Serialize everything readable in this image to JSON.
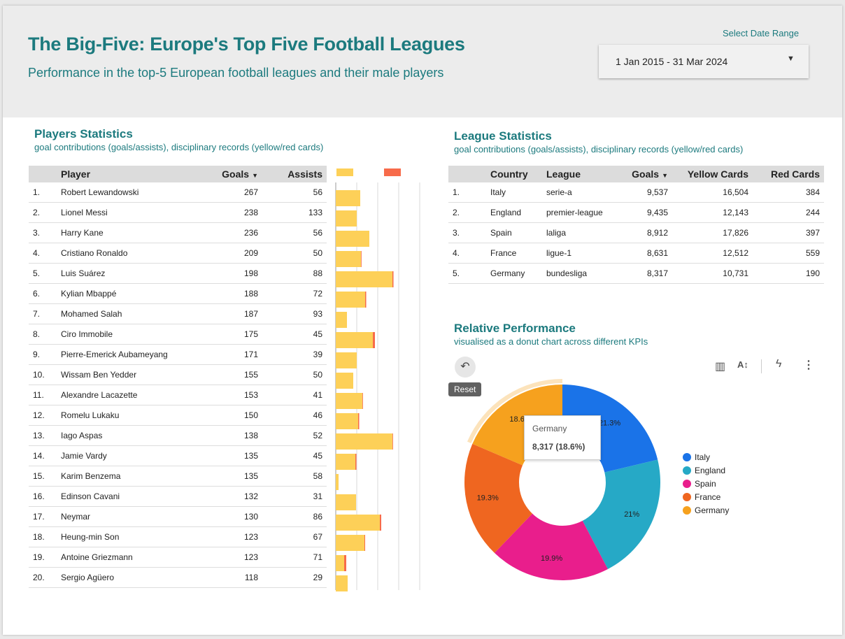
{
  "colors": {
    "accent": "#1c7a7e",
    "goals_bar": "#fdd058",
    "assists_bar": "#f76b4a"
  },
  "header": {
    "title": "The Big-Five: Europe's Top Five Football Leagues",
    "subtitle": "Performance in the top-5 European football leagues and their male players",
    "date_label": "Select Date Range",
    "date_value": "1 Jan 2015 - 31 Mar 2024"
  },
  "players": {
    "title": "Players Statistics",
    "subtitle": "goal contributions (goals/assists), disciplinary records (yellow/red cards)",
    "columns": {
      "player": "Player",
      "goals": "Goals",
      "assists": "Assists"
    },
    "rows": [
      {
        "rank": "1.",
        "name": "Robert Lewandowski",
        "goals": "267",
        "assists": "56"
      },
      {
        "rank": "2.",
        "name": "Lionel Messi",
        "goals": "238",
        "assists": "133"
      },
      {
        "rank": "3.",
        "name": "Harry Kane",
        "goals": "236",
        "assists": "56"
      },
      {
        "rank": "4.",
        "name": "Cristiano Ronaldo",
        "goals": "209",
        "assists": "50"
      },
      {
        "rank": "5.",
        "name": "Luis Suárez",
        "goals": "198",
        "assists": "88"
      },
      {
        "rank": "6.",
        "name": "Kylian Mbappé",
        "goals": "188",
        "assists": "72"
      },
      {
        "rank": "7.",
        "name": "Mohamed Salah",
        "goals": "187",
        "assists": "93"
      },
      {
        "rank": "8.",
        "name": "Ciro Immobile",
        "goals": "175",
        "assists": "45"
      },
      {
        "rank": "9.",
        "name": "Pierre-Emerick Aubameyang",
        "goals": "171",
        "assists": "39"
      },
      {
        "rank": "10.",
        "name": "Wissam Ben Yedder",
        "goals": "155",
        "assists": "50"
      },
      {
        "rank": "11.",
        "name": "Alexandre Lacazette",
        "goals": "153",
        "assists": "41"
      },
      {
        "rank": "12.",
        "name": "Romelu Lukaku",
        "goals": "150",
        "assists": "46"
      },
      {
        "rank": "13.",
        "name": "Iago Aspas",
        "goals": "138",
        "assists": "52"
      },
      {
        "rank": "14.",
        "name": "Jamie Vardy",
        "goals": "135",
        "assists": "45"
      },
      {
        "rank": "15.",
        "name": "Karim Benzema",
        "goals": "135",
        "assists": "58"
      },
      {
        "rank": "16.",
        "name": "Edinson Cavani",
        "goals": "132",
        "assists": "31"
      },
      {
        "rank": "17.",
        "name": "Neymar",
        "goals": "130",
        "assists": "86"
      },
      {
        "rank": "18.",
        "name": "Heung-min Son",
        "goals": "123",
        "assists": "67"
      },
      {
        "rank": "19.",
        "name": "Antoine Griezmann",
        "goals": "123",
        "assists": "71"
      },
      {
        "rank": "20.",
        "name": "Sergio Agüero",
        "goals": "118",
        "assists": "29"
      }
    ],
    "card_bars": [
      {
        "yellow": 35,
        "red": 0
      },
      {
        "yellow": 30,
        "red": 0
      },
      {
        "yellow": 48,
        "red": 0
      },
      {
        "yellow": 36,
        "red": 0.8
      },
      {
        "yellow": 81,
        "red": 1.5
      },
      {
        "yellow": 42,
        "red": 1.5
      },
      {
        "yellow": 16,
        "red": 0
      },
      {
        "yellow": 53,
        "red": 3
      },
      {
        "yellow": 30,
        "red": 0
      },
      {
        "yellow": 25,
        "red": 0
      },
      {
        "yellow": 38,
        "red": 0.8
      },
      {
        "yellow": 32,
        "red": 1.5
      },
      {
        "yellow": 81,
        "red": 0.8
      },
      {
        "yellow": 28,
        "red": 1.5
      },
      {
        "yellow": 4,
        "red": 0
      },
      {
        "yellow": 29,
        "red": 0
      },
      {
        "yellow": 63,
        "red": 2
      },
      {
        "yellow": 41,
        "red": 1
      },
      {
        "yellow": 12,
        "red": 3
      },
      {
        "yellow": 17,
        "red": 0
      }
    ]
  },
  "league": {
    "title": "League Statistics",
    "subtitle": "goal contributions (goals/assists), disciplinary records (yellow/red cards)",
    "columns": {
      "country": "Country",
      "league": "League",
      "goals": "Goals",
      "yellow": "Yellow Cards",
      "red": "Red Cards"
    },
    "rows": [
      {
        "rank": "1.",
        "country": "Italy",
        "league": "serie-a",
        "goals": "9,537",
        "yellow": "16,504",
        "red": "384"
      },
      {
        "rank": "2.",
        "country": "England",
        "league": "premier-league",
        "goals": "9,435",
        "yellow": "12,143",
        "red": "244"
      },
      {
        "rank": "3.",
        "country": "Spain",
        "league": "laliga",
        "goals": "8,912",
        "yellow": "17,826",
        "red": "397"
      },
      {
        "rank": "4.",
        "country": "France",
        "league": "ligue-1",
        "goals": "8,631",
        "yellow": "12,512",
        "red": "559"
      },
      {
        "rank": "5.",
        "country": "Germany",
        "league": "bundesliga",
        "goals": "8,317",
        "yellow": "10,731",
        "red": "190"
      }
    ]
  },
  "performance": {
    "title": "Relative Performance",
    "subtitle": "visualised as a donut chart across different KPIs",
    "reset_label": "Reset",
    "tooltip": {
      "name": "Germany",
      "value": "8,317 (18.6%)"
    }
  },
  "chart_data": {
    "type": "pie",
    "donut": true,
    "categories": [
      "Italy",
      "England",
      "Spain",
      "France",
      "Germany"
    ],
    "values": [
      9537,
      9435,
      8912,
      8631,
      8317
    ],
    "labels": [
      "21.3%",
      "21%",
      "19.9%",
      "19.3%",
      "18.6%"
    ],
    "colors": [
      "#1a73e8",
      "#26a9c6",
      "#e91e8c",
      "#ef6620",
      "#f6a11e"
    ],
    "legend_position": "right",
    "highlighted": "Germany"
  }
}
